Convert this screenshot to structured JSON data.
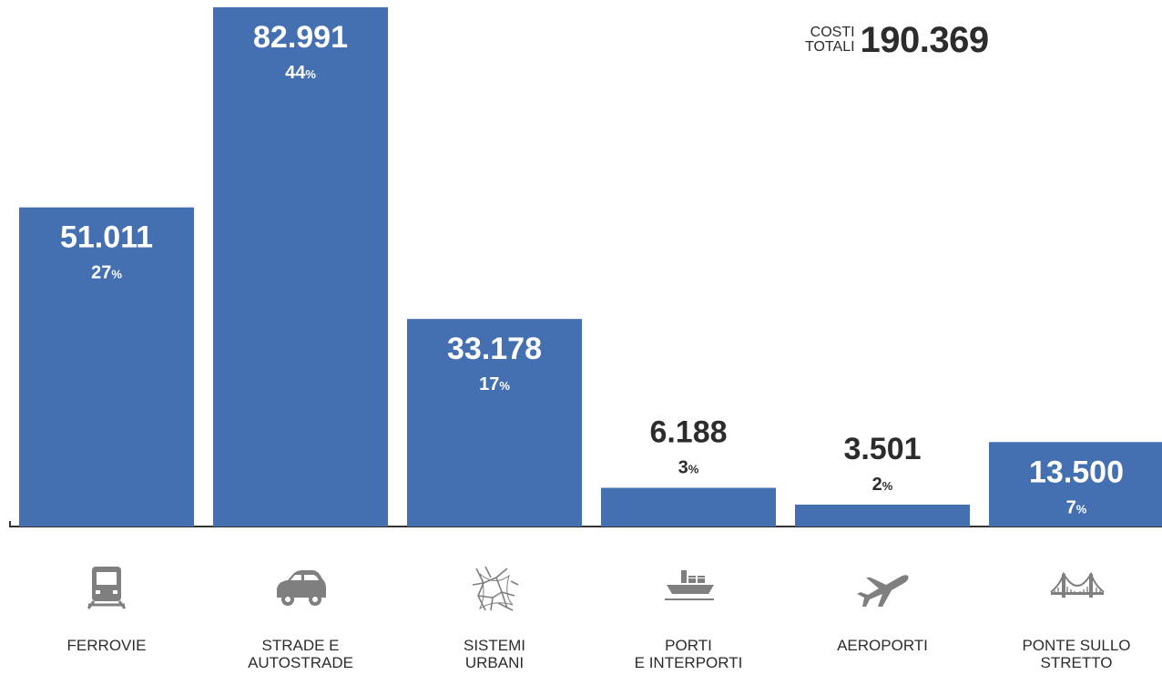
{
  "total": {
    "label_line1": "COSTI",
    "label_line2": "TOTALI",
    "value": "190.369"
  },
  "chart_data": {
    "type": "bar",
    "categories": [
      "FERROVIE",
      "STRADE E AUTOSTRADE",
      "SISTEMI URBANI",
      "PORTI E INTERPORTI",
      "AEROPORTI",
      "PONTE SULLO STRETTO"
    ],
    "category_lines": [
      [
        "FERROVIE"
      ],
      [
        "STRADE E",
        "AUTOSTRADE"
      ],
      [
        "SISTEMI",
        "URBANI"
      ],
      [
        "PORTI",
        "E INTERPORTI"
      ],
      [
        "AEROPORTI"
      ],
      [
        "PONTE SULLO",
        "STRETTO"
      ]
    ],
    "values": [
      51011,
      82991,
      33178,
      6188,
      3501,
      13500
    ],
    "value_labels": [
      "51.011",
      "82.991",
      "33.178",
      "6.188",
      "3.501",
      "13.500"
    ],
    "percent_labels": [
      "27",
      "44",
      "17",
      "3",
      "2",
      "7"
    ],
    "percent_sign": "%",
    "icons": [
      "train-icon",
      "car-icon",
      "city-map-icon",
      "cargo-ship-icon",
      "airplane-icon",
      "bridge-icon"
    ],
    "ylim": [
      0,
      82991
    ],
    "bar_color": "#4470b2",
    "label_inside_color": "#ffffff",
    "label_outside_color": "#2c2c2c",
    "icon_color": "#7f7f7f",
    "grid": false
  }
}
